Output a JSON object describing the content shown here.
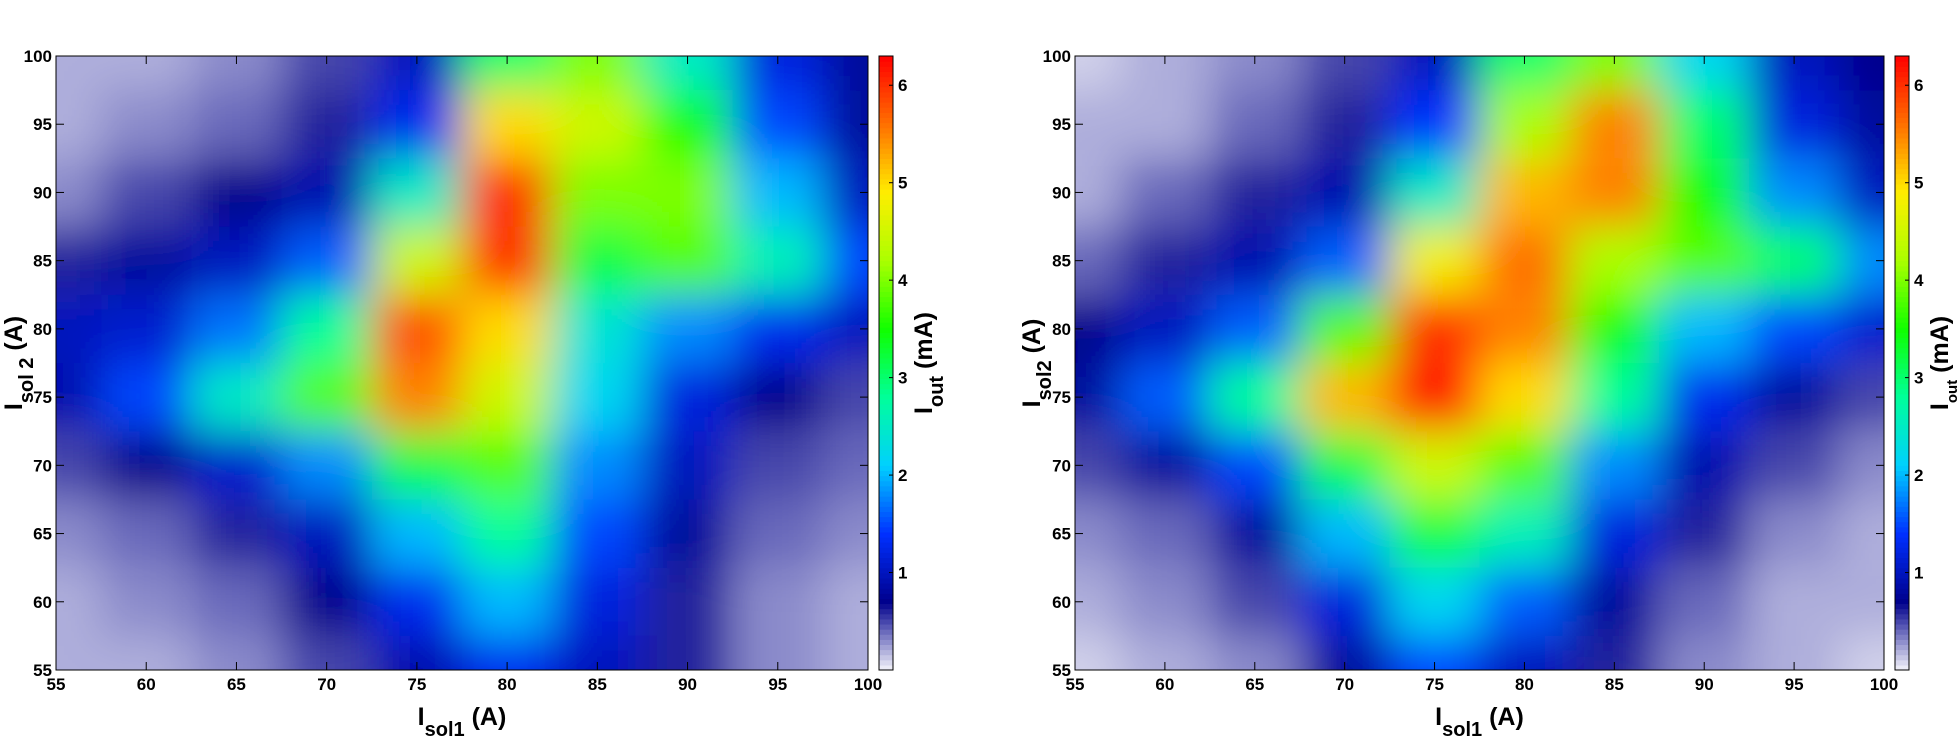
{
  "chart_data": [
    {
      "type": "heatmap",
      "xlabel": {
        "main": "I",
        "sub": "sol1",
        "rest": " (A)"
      },
      "ylabel": {
        "main": "I",
        "sub": "sol 2",
        "rest": " (A)"
      },
      "colorbar_label": {
        "main": "I",
        "sub": "out",
        "rest": " (mA)"
      },
      "x": [
        55,
        60,
        65,
        70,
        75,
        80,
        85,
        90,
        95,
        100
      ],
      "y": [
        55,
        60,
        65,
        70,
        75,
        80,
        85,
        90,
        95,
        100
      ],
      "z": [
        [
          0.2,
          0.2,
          0.3,
          0.5,
          0.9,
          1.3,
          1.0,
          0.6,
          0.3,
          0.2
        ],
        [
          0.2,
          0.3,
          0.4,
          0.7,
          1.3,
          2.0,
          1.2,
          0.6,
          0.3,
          0.2
        ],
        [
          0.3,
          0.4,
          0.6,
          1.0,
          2.0,
          2.8,
          1.5,
          0.8,
          0.4,
          0.3
        ],
        [
          0.5,
          0.7,
          1.1,
          1.8,
          3.2,
          3.8,
          1.8,
          1.0,
          0.5,
          0.4
        ],
        [
          0.9,
          1.5,
          2.5,
          3.8,
          5.5,
          4.5,
          2.2,
          1.2,
          0.7,
          0.5
        ],
        [
          1.0,
          1.1,
          1.7,
          2.8,
          5.8,
          5.0,
          2.4,
          1.8,
          1.3,
          1.0
        ],
        [
          0.6,
          0.8,
          1.0,
          1.6,
          4.5,
          6.0,
          3.2,
          3.8,
          2.6,
          1.5
        ],
        [
          0.3,
          0.5,
          0.7,
          0.9,
          2.5,
          6.0,
          4.0,
          4.0,
          2.0,
          1.0
        ],
        [
          0.2,
          0.3,
          0.4,
          0.6,
          1.3,
          5.0,
          4.5,
          3.5,
          1.5,
          0.8
        ],
        [
          0.2,
          0.2,
          0.3,
          0.5,
          1.0,
          3.0,
          4.0,
          2.5,
          1.2,
          0.8
        ]
      ],
      "xlim": [
        55,
        100
      ],
      "ylim": [
        55,
        100
      ],
      "zlim": [
        0,
        6.3
      ],
      "xticks": [
        55,
        60,
        65,
        70,
        75,
        80,
        85,
        90,
        95,
        100
      ],
      "yticks": [
        55,
        60,
        65,
        70,
        75,
        80,
        85,
        90,
        95,
        100
      ],
      "zticks": [
        1,
        2,
        3,
        4,
        5,
        6
      ],
      "colormap": [
        "#f4f4fa",
        "#00008c",
        "#0030ff",
        "#00d0ff",
        "#00ff9a",
        "#10ff00",
        "#aaff00",
        "#ffee00",
        "#ff7000",
        "#ff0000"
      ]
    },
    {
      "type": "heatmap",
      "xlabel": {
        "main": "I",
        "sub": "sol1",
        "rest": " (A)"
      },
      "ylabel": {
        "main": "I",
        "sub": "sol2",
        "rest": " (A)"
      },
      "colorbar_label": {
        "main": "I",
        "sub": "out",
        "rest": " (mA)"
      },
      "x": [
        55,
        60,
        65,
        70,
        75,
        80,
        85,
        90,
        95,
        100
      ],
      "y": [
        55,
        60,
        65,
        70,
        75,
        80,
        85,
        90,
        95,
        100
      ],
      "z": [
        [
          0.1,
          0.2,
          0.3,
          0.8,
          1.5,
          1.0,
          0.6,
          0.3,
          0.2,
          0.1
        ],
        [
          0.2,
          0.3,
          0.5,
          1.2,
          2.2,
          1.6,
          0.8,
          0.4,
          0.2,
          0.2
        ],
        [
          0.3,
          0.4,
          0.8,
          2.0,
          3.2,
          2.6,
          1.2,
          0.6,
          0.3,
          0.2
        ],
        [
          0.5,
          0.8,
          1.5,
          3.2,
          4.5,
          3.8,
          1.8,
          0.9,
          0.5,
          0.3
        ],
        [
          0.8,
          1.6,
          2.8,
          5.2,
          6.2,
          5.0,
          2.8,
          1.3,
          0.8,
          0.5
        ],
        [
          0.7,
          1.0,
          1.6,
          3.8,
          6.0,
          5.5,
          3.5,
          2.0,
          1.5,
          1.1
        ],
        [
          0.4,
          0.6,
          0.9,
          1.6,
          4.8,
          5.6,
          4.2,
          3.8,
          3.0,
          1.8
        ],
        [
          0.2,
          0.4,
          0.6,
          0.9,
          2.5,
          5.2,
          5.5,
          3.5,
          1.8,
          1.0
        ],
        [
          0.2,
          0.2,
          0.4,
          0.6,
          1.4,
          4.2,
          5.5,
          3.0,
          1.2,
          0.8
        ],
        [
          0.1,
          0.2,
          0.3,
          0.5,
          1.0,
          3.0,
          4.0,
          2.2,
          1.0,
          0.7
        ]
      ],
      "xlim": [
        55,
        100
      ],
      "ylim": [
        55,
        100
      ],
      "zlim": [
        0,
        6.3
      ],
      "xticks": [
        55,
        60,
        65,
        70,
        75,
        80,
        85,
        90,
        95,
        100
      ],
      "yticks": [
        55,
        60,
        65,
        70,
        75,
        80,
        85,
        90,
        95,
        100
      ],
      "zticks": [
        1,
        2,
        3,
        4,
        5,
        6
      ],
      "colormap": [
        "#f4f4fa",
        "#00008c",
        "#0030ff",
        "#00d0ff",
        "#00ff9a",
        "#10ff00",
        "#aaff00",
        "#ffee00",
        "#ff7000",
        "#ff0000"
      ]
    }
  ]
}
